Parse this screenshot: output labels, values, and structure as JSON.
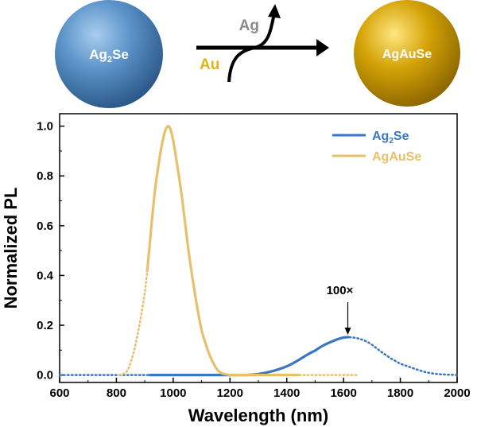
{
  "scheme": {
    "left_label_main": "Ag",
    "left_label_sub": "2",
    "left_label_tail": "Se",
    "arrow_out_label": "Ag",
    "arrow_in_label": "Au",
    "right_label": "AgAuSe",
    "colors": {
      "ag2se_sphere": "#3f79b2",
      "agause_sphere": "#c99a06",
      "ag_text": "#8a8a8a",
      "au_text": "#e0b416",
      "arrow": "#000000"
    }
  },
  "annotation": {
    "text": "100×",
    "x": 1615,
    "y": 0.152
  },
  "chart_data": {
    "type": "line",
    "title": "",
    "xlabel": "Wavelength (nm)",
    "ylabel": "Normalized PL",
    "xlim": [
      600,
      2000
    ],
    "ylim": [
      -0.03,
      1.05
    ],
    "xticks": [
      600,
      800,
      1000,
      1200,
      1400,
      1600,
      1800,
      2000
    ],
    "xtick_labels": [
      "600",
      "800",
      "1000",
      "1200",
      "1400",
      "1600",
      "1800",
      "2000"
    ],
    "yticks": [
      0.0,
      0.2,
      0.4,
      0.6,
      0.8,
      1.0
    ],
    "ytick_labels": [
      "0.0",
      "0.2",
      "0.4",
      "0.6",
      "0.8",
      "1.0"
    ],
    "grid": false,
    "legend_position": "top-right",
    "series": [
      {
        "name_main": "Ag",
        "name_sub": "2",
        "name_tail": "Se",
        "color": "#3a76c2",
        "peak_x": 1615,
        "peak_y": 0.152,
        "solid_range": [
          915,
          1620
        ],
        "dotted_range": [
          600,
          2000
        ],
        "x": [
          600,
          915,
          1200,
          1300,
          1400,
          1500,
          1560,
          1615,
          1680,
          1750,
          1800,
          1900,
          2000
        ],
        "y": [
          0.0,
          0.0,
          0.0,
          0.004,
          0.035,
          0.098,
          0.135,
          0.152,
          0.135,
          0.08,
          0.045,
          0.009,
          0.0
        ]
      },
      {
        "name": "AgAuSe",
        "color": "#e8c06c",
        "peak_x": 982,
        "peak_y": 1.0,
        "solid_range": [
          908,
          1445
        ],
        "dotted_range": [
          810,
          1650
        ],
        "x": [
          810,
          850,
          900,
          940,
          982,
          1020,
          1060,
          1100,
          1150,
          1200,
          1650
        ],
        "y": [
          0.0,
          0.05,
          0.33,
          0.78,
          1.0,
          0.8,
          0.45,
          0.18,
          0.03,
          0.0,
          0.0
        ]
      }
    ]
  }
}
